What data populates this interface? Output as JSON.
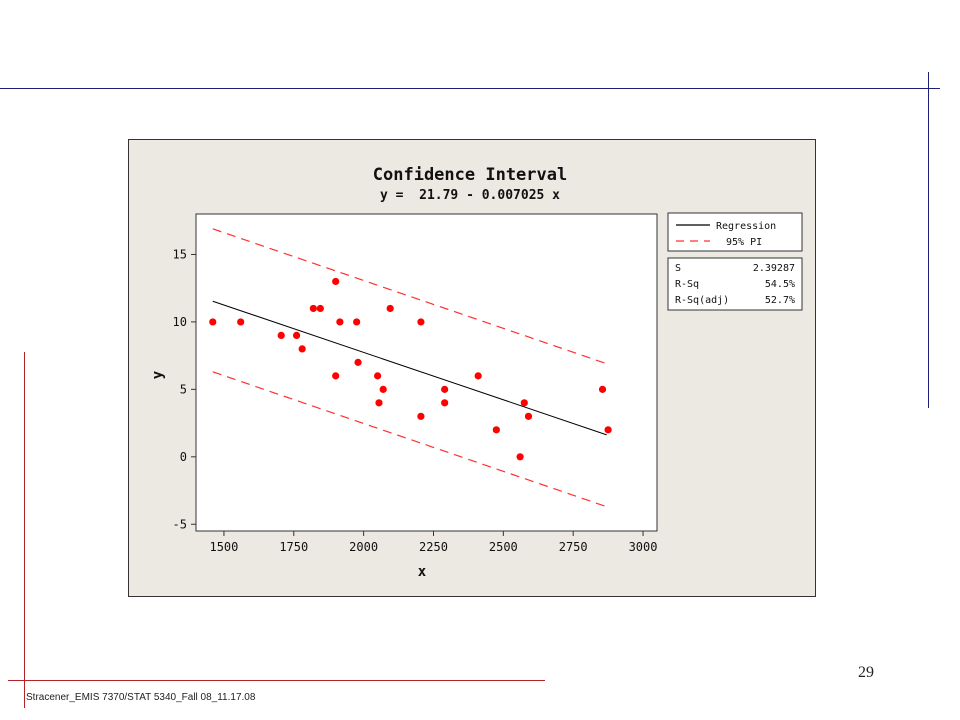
{
  "slide": {
    "page_number": "29",
    "footer": "Stracener_EMIS 7370/STAT 5340_Fall 08_11.17.08"
  },
  "colors": {
    "background": "#ffffff",
    "chart_background": "#ece9e2",
    "plot_background": "#ffffff",
    "rule_blue": "#1f1f7a",
    "rule_red": "#b3242a",
    "points": "#ff0000",
    "regression_line": "#000000",
    "pi_line": "#ff3030"
  },
  "chart_data": {
    "type": "scatter",
    "title": "Confidence Interval",
    "subtitle": "y =  21.79 - 0.007025 x",
    "xlabel": "x",
    "ylabel": "y",
    "xlim": [
      1400,
      3050
    ],
    "ylim": [
      -5.5,
      18
    ],
    "x_ticks": [
      1500,
      1750,
      2000,
      2250,
      2500,
      2750,
      3000
    ],
    "y_ticks": [
      -5,
      0,
      5,
      10,
      15
    ],
    "grid": false,
    "legend_position": "right",
    "legend": [
      {
        "label": "Regression",
        "style": "solid",
        "color": "#000000"
      },
      {
        "label": "95% PI",
        "style": "dashed",
        "color": "#ff3030"
      }
    ],
    "stats": [
      {
        "label": "S",
        "value": "2.39287"
      },
      {
        "label": "R-Sq",
        "value": "54.5%"
      },
      {
        "label": "R-Sq(adj)",
        "value": "52.7%"
      }
    ],
    "regression": {
      "intercept": 21.79,
      "slope": -0.007025,
      "x_range": [
        1460,
        2870
      ]
    },
    "prediction_interval": {
      "upper": [
        [
          1460,
          16.9
        ],
        [
          2870,
          6.9
        ]
      ],
      "lower": [
        [
          1460,
          6.3
        ],
        [
          2870,
          -3.7
        ]
      ]
    },
    "points": [
      {
        "x": 1460,
        "y": 10
      },
      {
        "x": 1560,
        "y": 10
      },
      {
        "x": 1705,
        "y": 9
      },
      {
        "x": 1760,
        "y": 9
      },
      {
        "x": 1780,
        "y": 8
      },
      {
        "x": 1820,
        "y": 11
      },
      {
        "x": 1845,
        "y": 11
      },
      {
        "x": 1900,
        "y": 13
      },
      {
        "x": 1900,
        "y": 6
      },
      {
        "x": 1915,
        "y": 10
      },
      {
        "x": 1975,
        "y": 10
      },
      {
        "x": 1980,
        "y": 7
      },
      {
        "x": 2050,
        "y": 6
      },
      {
        "x": 2055,
        "y": 4
      },
      {
        "x": 2070,
        "y": 5
      },
      {
        "x": 2095,
        "y": 11
      },
      {
        "x": 2205,
        "y": 10
      },
      {
        "x": 2205,
        "y": 3
      },
      {
        "x": 2290,
        "y": 5
      },
      {
        "x": 2290,
        "y": 4
      },
      {
        "x": 2410,
        "y": 6
      },
      {
        "x": 2475,
        "y": 2
      },
      {
        "x": 2560,
        "y": 0
      },
      {
        "x": 2575,
        "y": 4
      },
      {
        "x": 2590,
        "y": 3
      },
      {
        "x": 2855,
        "y": 5
      },
      {
        "x": 2875,
        "y": 2
      }
    ]
  }
}
